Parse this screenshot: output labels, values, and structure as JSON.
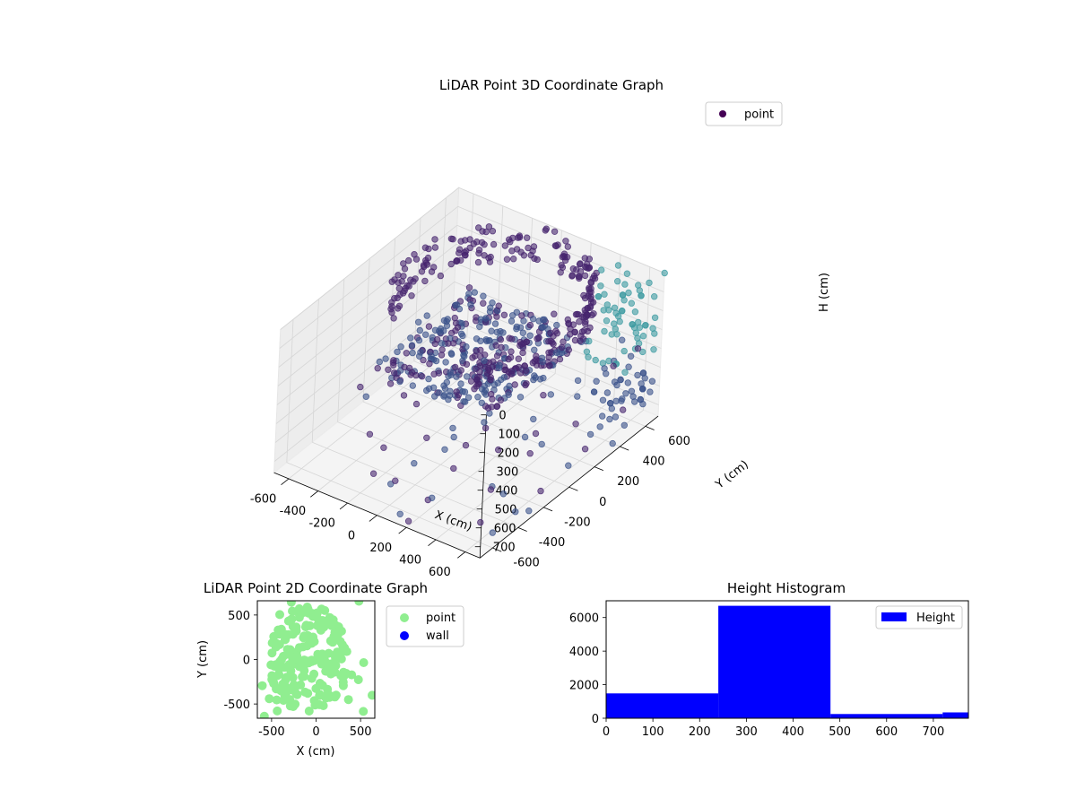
{
  "figure": {
    "title_3d": "LiDAR Point 3D Coordinate Graph",
    "title_2d": "LiDAR Point 2D Coordinate Graph",
    "title_hist": "Height Histogram"
  },
  "chart_data": [
    {
      "type": "scatter",
      "title": "LiDAR Point 3D Coordinate Graph",
      "xlabel": "X (cm)",
      "ylabel": "Y (cm)",
      "zlabel": "H (cm)",
      "x_ticks": [
        "-600",
        "-400",
        "-200",
        "0",
        "200",
        "400",
        "600"
      ],
      "y_ticks": [
        "-600",
        "-400",
        "-200",
        "0",
        "200",
        "400",
        "600"
      ],
      "z_ticks": [
        "0",
        "100",
        "200",
        "300",
        "400",
        "500",
        "600",
        "700"
      ],
      "xlim": [
        -700,
        700
      ],
      "ylim": [
        -700,
        700
      ],
      "zlim": [
        0,
        760
      ],
      "z_axis_inverted": true,
      "legend": {
        "entries": [
          "point"
        ],
        "location": "upper-right"
      },
      "colormap": "viridis (by height)",
      "marker_colors": {
        "legend": "#440154",
        "dark": "#46246e",
        "mid": "#3b528b",
        "teal": "#3b9aa0"
      },
      "grid": true,
      "point_groups": [
        {
          "desc": "dense floor cloud",
          "x_range": [
            -450,
            350
          ],
          "y_range": [
            -250,
            550
          ],
          "h": 370,
          "count": 340
        },
        {
          "desc": "curved wall band",
          "arc_center": [
            0,
            150
          ],
          "radius": 520,
          "angle_range_deg": [
            -60,
            210
          ],
          "h_range": [
            0,
            200
          ],
          "count": 240
        },
        {
          "desc": "vertical column of teal points",
          "x_range": [
            400,
            700
          ],
          "y_range": [
            400,
            700
          ],
          "h_range": [
            0,
            760
          ],
          "count": 110
        },
        {
          "desc": "scattered outliers",
          "x_range": [
            -700,
            700
          ],
          "y_range": [
            -700,
            700
          ],
          "h_range": [
            300,
            760
          ],
          "count": 70
        }
      ]
    },
    {
      "type": "scatter",
      "title": "LiDAR Point 2D Coordinate Graph",
      "xlabel": "X (cm)",
      "ylabel": "Y (cm)",
      "x_ticks": [
        "-500",
        "0",
        "500"
      ],
      "y_ticks": [
        "-500",
        "0",
        "500"
      ],
      "xlim": [
        -660,
        660
      ],
      "ylim": [
        -660,
        660
      ],
      "legend": {
        "entries": [
          "point",
          "wall"
        ],
        "location": "outside-right",
        "colors": [
          "#90ee90",
          "#0000ff"
        ]
      },
      "series": [
        {
          "name": "point",
          "color": "#90ee90",
          "blob_center": [
            -80,
            0
          ],
          "blob_radii": [
            450,
            600
          ],
          "count": 180
        },
        {
          "name": "wall",
          "color": "#0000ff",
          "count": 0
        }
      ]
    },
    {
      "type": "bar",
      "title": "Height Histogram",
      "xlim": [
        0,
        775
      ],
      "ylim": [
        0,
        7000
      ],
      "x_ticks": [
        "0",
        "100",
        "200",
        "300",
        "400",
        "500",
        "600",
        "700"
      ],
      "y_ticks": [
        "0",
        "2000",
        "4000",
        "6000"
      ],
      "legend": {
        "entries": [
          "Height"
        ],
        "location": "upper-right"
      },
      "color": "#0000ff",
      "bins": [
        {
          "x0": 0,
          "x1": 240,
          "count": 1480
        },
        {
          "x0": 240,
          "x1": 480,
          "count": 6700
        },
        {
          "x0": 480,
          "x1": 720,
          "count": 250
        },
        {
          "x0": 720,
          "x1": 775,
          "count": 350
        }
      ]
    }
  ]
}
